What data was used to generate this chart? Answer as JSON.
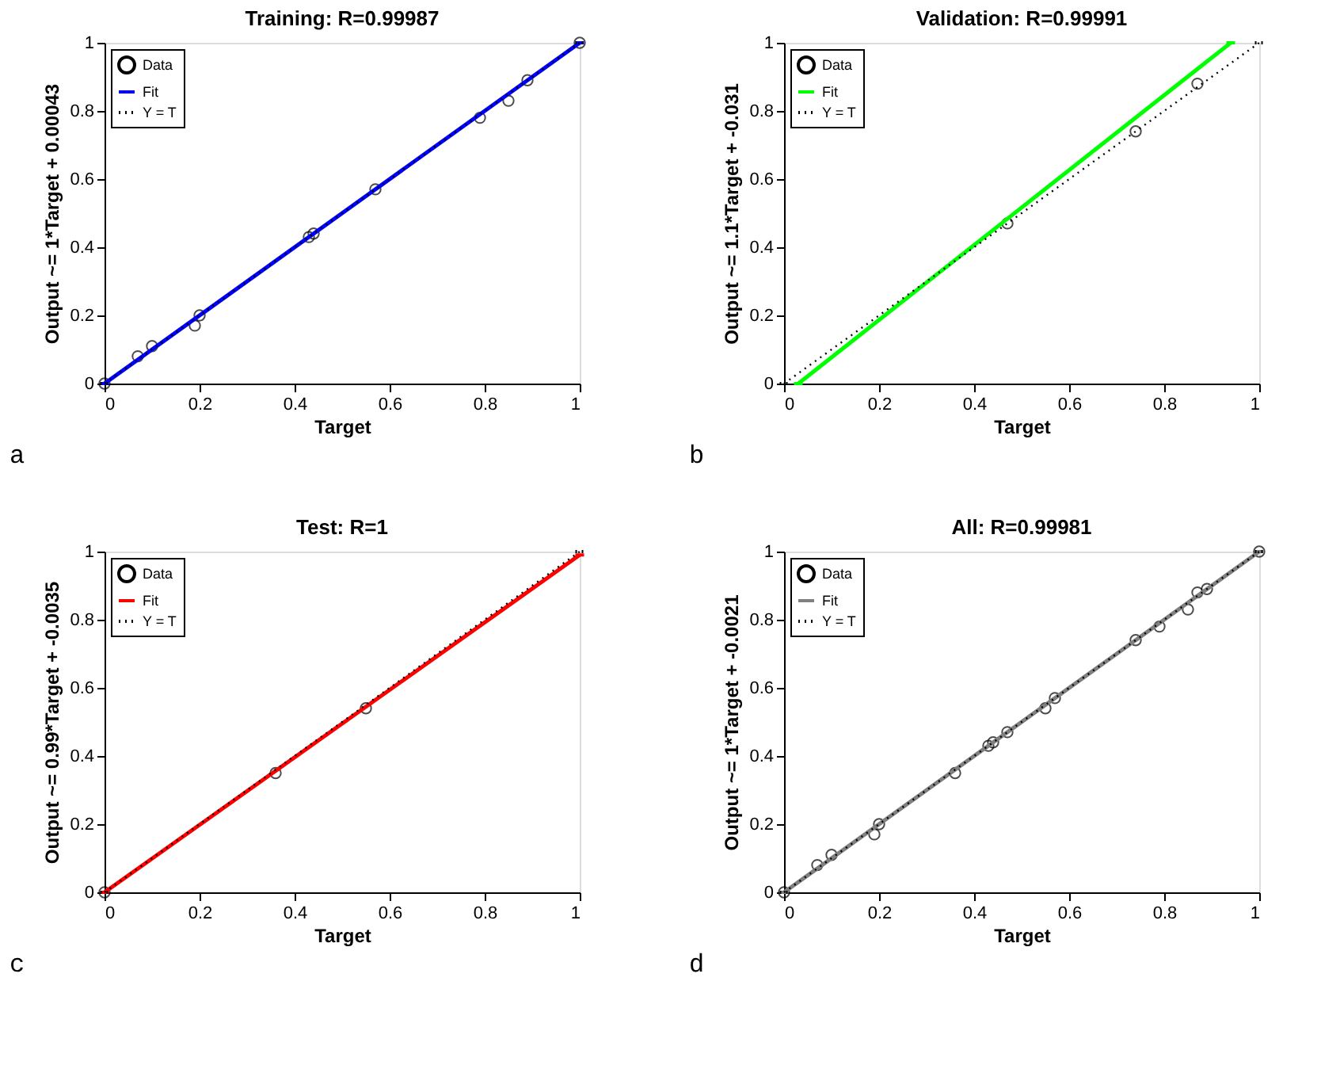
{
  "chart_data": [
    {
      "type": "scatter",
      "title": "Training: R=0.99987",
      "xlabel": "Target",
      "ylabel": "Output ~= 1*Target + 0.00043",
      "xlim": [
        0,
        1
      ],
      "ylim": [
        0,
        1
      ],
      "xticks": [
        0,
        0.2,
        0.4,
        0.6,
        0.8,
        1
      ],
      "yticks": [
        0,
        0.2,
        0.4,
        0.6,
        0.8,
        1
      ],
      "grid": false,
      "legend": "top left",
      "annotations": [
        "a"
      ],
      "series": [
        {
          "name": "Data",
          "marker": "circle",
          "color": "#000000",
          "x": [
            0,
            0.07,
            0.1,
            0.19,
            0.2,
            0.43,
            0.44,
            0.57,
            0.79,
            0.85,
            0.89,
            1
          ],
          "values": [
            0,
            0.08,
            0.11,
            0.17,
            0.2,
            0.43,
            0.44,
            0.57,
            0.78,
            0.83,
            0.89,
            1
          ]
        },
        {
          "name": "Fit",
          "type": "line",
          "line_style": "solid",
          "color": "#0000ff",
          "x": [
            0,
            1
          ],
          "values": [
            0,
            1
          ]
        },
        {
          "name": "Y = T",
          "type": "line",
          "line_style": "dotted",
          "color": "#000000",
          "x": [
            0,
            1
          ],
          "values": [
            0,
            1
          ]
        }
      ]
    },
    {
      "type": "scatter",
      "title": "Validation: R=0.99991",
      "xlabel": "Target",
      "ylabel": "Output ~= 1.1*Target + -0.031",
      "xlim": [
        0,
        1
      ],
      "ylim": [
        0,
        1
      ],
      "xticks": [
        0,
        0.2,
        0.4,
        0.6,
        0.8,
        1
      ],
      "yticks": [
        0,
        0.2,
        0.4,
        0.6,
        0.8,
        1
      ],
      "grid": false,
      "legend": "top left",
      "annotations": [
        "b"
      ],
      "series": [
        {
          "name": "Data",
          "marker": "circle",
          "color": "#000000",
          "x": [
            0.47,
            0.74,
            0.87
          ],
          "values": [
            0.47,
            0.74,
            0.88
          ]
        },
        {
          "name": "Fit",
          "type": "line",
          "line_style": "solid",
          "color": "#00ff00",
          "x": [
            0.03,
            0.94
          ],
          "values": [
            0,
            1
          ]
        },
        {
          "name": "Y = T",
          "type": "line",
          "line_style": "dotted",
          "color": "#000000",
          "x": [
            0,
            1
          ],
          "values": [
            0,
            1
          ]
        }
      ]
    },
    {
      "type": "scatter",
      "title": "Test: R=1",
      "xlabel": "Target",
      "ylabel": "Output ~= 0.99*Target + -0.0035",
      "xlim": [
        0,
        1
      ],
      "ylim": [
        0,
        1
      ],
      "xticks": [
        0,
        0.2,
        0.4,
        0.6,
        0.8,
        1
      ],
      "yticks": [
        0,
        0.2,
        0.4,
        0.6,
        0.8,
        1
      ],
      "grid": false,
      "legend": "top left",
      "annotations": [
        "c"
      ],
      "series": [
        {
          "name": "Data",
          "marker": "circle",
          "color": "#000000",
          "x": [
            0,
            0.36,
            0.55
          ],
          "values": [
            0,
            0.35,
            0.54
          ]
        },
        {
          "name": "Fit",
          "type": "line",
          "line_style": "solid",
          "color": "#ff0000",
          "x": [
            0,
            1
          ],
          "values": [
            0,
            0.99
          ]
        },
        {
          "name": "Y = T",
          "type": "line",
          "line_style": "dotted",
          "color": "#000000",
          "x": [
            0,
            1
          ],
          "values": [
            0,
            1
          ]
        }
      ]
    },
    {
      "type": "scatter",
      "title": "All: R=0.99981",
      "xlabel": "Target",
      "ylabel": "Output ~= 1*Target + -0.0021",
      "xlim": [
        0,
        1
      ],
      "ylim": [
        0,
        1
      ],
      "xticks": [
        0,
        0.2,
        0.4,
        0.6,
        0.8,
        1
      ],
      "yticks": [
        0,
        0.2,
        0.4,
        0.6,
        0.8,
        1
      ],
      "grid": false,
      "legend": "top left",
      "annotations": [
        "d"
      ],
      "series": [
        {
          "name": "Data",
          "marker": "circle",
          "color": "#000000",
          "x": [
            0,
            0.07,
            0.1,
            0.19,
            0.2,
            0.36,
            0.43,
            0.44,
            0.47,
            0.55,
            0.57,
            0.74,
            0.79,
            0.85,
            0.87,
            0.89,
            1
          ],
          "values": [
            0,
            0.08,
            0.11,
            0.17,
            0.2,
            0.35,
            0.43,
            0.44,
            0.47,
            0.54,
            0.57,
            0.74,
            0.78,
            0.83,
            0.88,
            0.89,
            1
          ]
        },
        {
          "name": "Fit",
          "type": "line",
          "line_style": "solid",
          "color": "#808080",
          "x": [
            0,
            1
          ],
          "values": [
            0,
            1
          ]
        },
        {
          "name": "Y = T",
          "type": "line",
          "line_style": "dotted",
          "color": "#000000",
          "x": [
            0,
            1
          ],
          "values": [
            0,
            1
          ]
        }
      ]
    }
  ]
}
